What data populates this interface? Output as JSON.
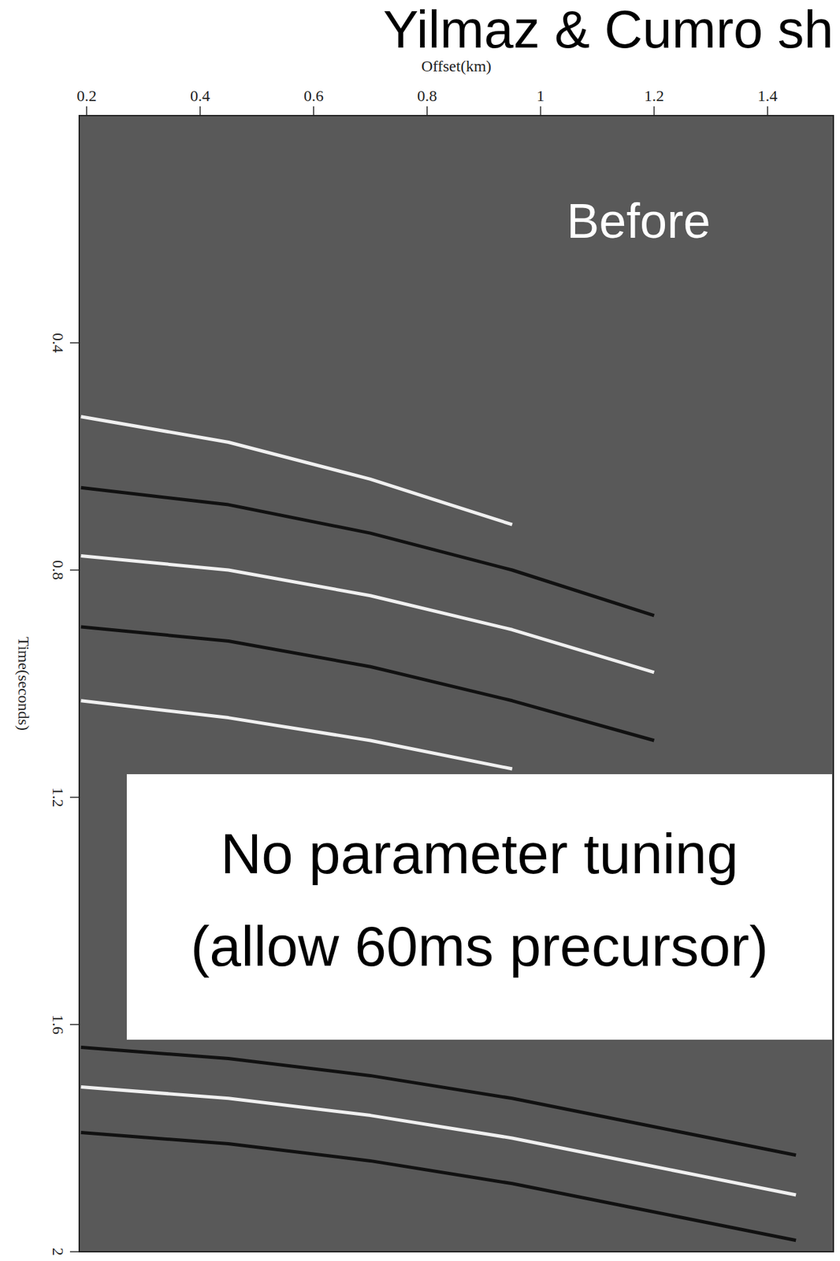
{
  "chart_data": {
    "type": "line",
    "title": "Yilmaz & Cumro sh",
    "x_label": "Offset(km)",
    "y_label": "Time(seconds)",
    "annotations": [
      "Before",
      "No parameter tuning",
      "(allow 60ms precursor)"
    ],
    "x": [
      0.19,
      0.45,
      0.7,
      0.95,
      1.2,
      1.45
    ],
    "series": [
      {
        "color": "#f0f0f0",
        "values": [
          0.53,
          0.575,
          0.64,
          0.72,
          null,
          null
        ]
      },
      {
        "color": "#111111",
        "values": [
          0.655,
          0.685,
          0.735,
          0.8,
          0.88,
          null
        ]
      },
      {
        "color": "#f0f0f0",
        "values": [
          0.775,
          0.8,
          0.845,
          0.905,
          0.98,
          null
        ]
      },
      {
        "color": "#111111",
        "values": [
          0.9,
          0.925,
          0.97,
          1.03,
          1.1,
          null
        ]
      },
      {
        "color": "#f0f0f0",
        "values": [
          1.03,
          1.06,
          1.1,
          1.15,
          null,
          null
        ]
      },
      {
        "color": "#111111",
        "values": [
          1.64,
          1.66,
          1.69,
          1.73,
          1.78,
          1.83
        ]
      },
      {
        "color": "#f0f0f0",
        "values": [
          1.71,
          1.73,
          1.76,
          1.8,
          1.85,
          1.9
        ]
      },
      {
        "color": "#111111",
        "values": [
          1.79,
          1.81,
          1.84,
          1.88,
          1.93,
          1.98
        ]
      }
    ],
    "xlim": [
      0.187,
      1.516
    ],
    "ylim": [
      0,
      2
    ],
    "xticks": [
      0.2,
      0.4,
      0.6,
      0.8,
      1,
      1.2,
      1.4
    ],
    "yticks": [
      0.4,
      0.8,
      1.2,
      1.6,
      2
    ],
    "grid": false,
    "line_style": "solid"
  }
}
